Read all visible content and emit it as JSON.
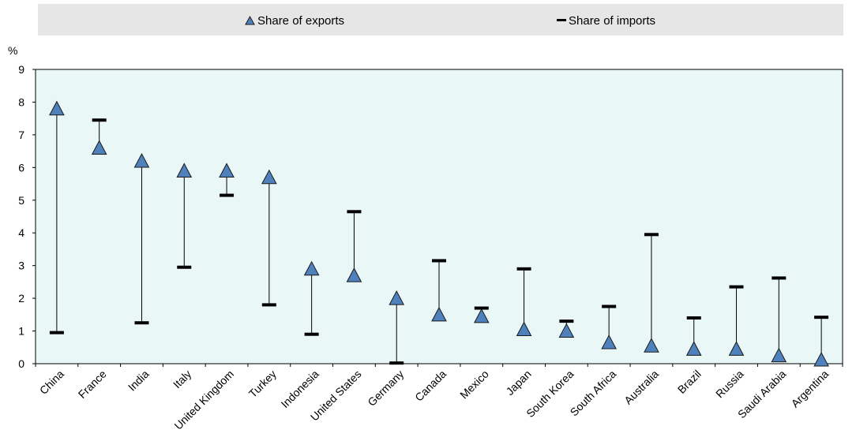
{
  "chart_data": {
    "type": "scatter",
    "unit_label": "%",
    "ylim": [
      0,
      9
    ],
    "yticks": [
      "0",
      "1",
      "2",
      "3",
      "4",
      "5",
      "6",
      "7",
      "8",
      "9"
    ],
    "grid": false,
    "legend_position": "top",
    "colors": {
      "plot_bg": "#eaf7f7",
      "legend_bg": "#e6e6e6",
      "marker_fill": "#4f81bd",
      "marker_stroke": "#1a1a1a",
      "import_mark": "#000000"
    },
    "categories": [
      "China",
      "France",
      "India",
      "Italy",
      "United Kingdom",
      "Turkey",
      "Indonesia",
      "United States",
      "Germany",
      "Canada",
      "Mexico",
      "Japan",
      "South Korea",
      "South Africa",
      "Australia",
      "Brazil",
      "Russia",
      "Saudi Arabia",
      "Argentina"
    ],
    "series": [
      {
        "name": "Share of exports",
        "marker": "triangle",
        "values": [
          7.8,
          6.6,
          6.2,
          5.9,
          5.9,
          5.7,
          2.9,
          2.7,
          2.0,
          1.5,
          1.45,
          1.05,
          1.0,
          0.65,
          0.55,
          0.45,
          0.45,
          0.25,
          0.12
        ]
      },
      {
        "name": "Share of imports",
        "marker": "dash",
        "values": [
          0.95,
          7.45,
          1.25,
          2.95,
          5.15,
          1.8,
          0.9,
          4.65,
          0.02,
          3.15,
          1.7,
          2.9,
          1.3,
          1.75,
          3.95,
          1.4,
          2.35,
          2.62,
          1.42
        ]
      }
    ]
  }
}
